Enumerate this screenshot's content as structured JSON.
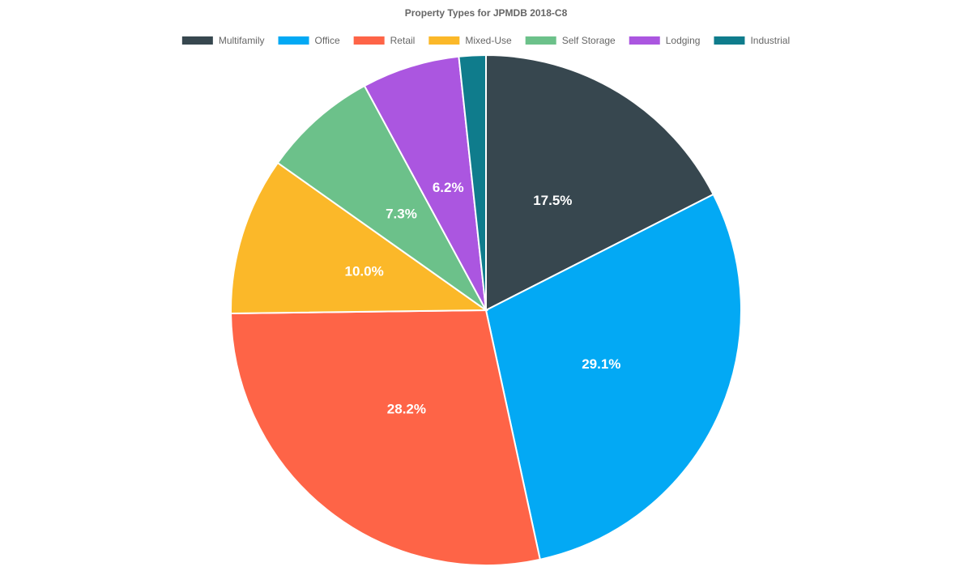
{
  "chart_data": {
    "type": "pie",
    "title": "Property Types for JPMDB 2018-C8",
    "categories": [
      "Multifamily",
      "Office",
      "Retail",
      "Mixed-Use",
      "Self Storage",
      "Lodging",
      "Industrial"
    ],
    "values": [
      17.5,
      29.1,
      28.2,
      10.0,
      7.3,
      6.2,
      1.7
    ],
    "value_labels": [
      "17.5%",
      "29.1%",
      "28.2%",
      "10.0%",
      "7.3%",
      "6.2%",
      null
    ],
    "colors": [
      "#37474f",
      "#03a9f4",
      "#fe6447",
      "#fbb829",
      "#6cc18a",
      "#ab56e0",
      "#0f7c8c"
    ],
    "legend": "top"
  }
}
